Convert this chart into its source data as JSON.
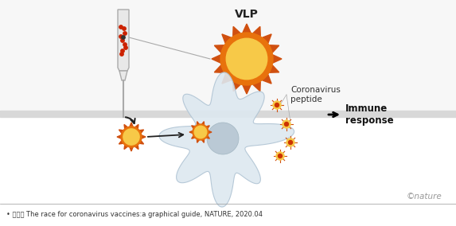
{
  "title": "VLP",
  "source_text": "• 출서： The race for coronavirus vaccines:a graphical guide, NATURE, 2020.04",
  "nature_text": "©nature",
  "coronavirus_peptide_text": "Coronavirus\npeptide",
  "immune_response_text": "Immune\nresponse",
  "vlp_color_outer": "#E8720C",
  "vlp_color_inner": "#F7C948",
  "vlp_spike_color": "#D05010",
  "arrow_color": "#222222",
  "tube_color_body": "#e8e8e8",
  "tube_color_border": "#aaaaaa",
  "dot_color": "#cc2200",
  "dendritic_color": "#dde8f0",
  "dendritic_nucleus_color": "#b8c8d4",
  "spike_particle_color_inner": "#F7C948",
  "spike_particle_color_outer": "#D05010",
  "panel_bg_top": "#f7f7f7",
  "panel_divider": "#d8d8d8",
  "nature_color": "#999999"
}
